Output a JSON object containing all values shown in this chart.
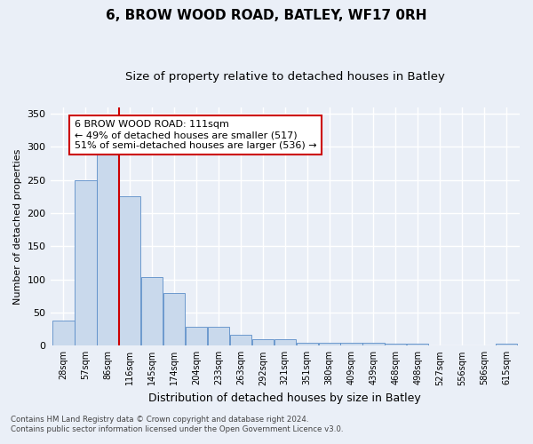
{
  "title": "6, BROW WOOD ROAD, BATLEY, WF17 0RH",
  "subtitle": "Size of property relative to detached houses in Batley",
  "xlabel": "Distribution of detached houses by size in Batley",
  "ylabel": "Number of detached properties",
  "footer_line1": "Contains HM Land Registry data © Crown copyright and database right 2024.",
  "footer_line2": "Contains public sector information licensed under the Open Government Licence v3.0.",
  "categories": [
    "28sqm",
    "57sqm",
    "86sqm",
    "116sqm",
    "145sqm",
    "174sqm",
    "204sqm",
    "233sqm",
    "263sqm",
    "292sqm",
    "321sqm",
    "351sqm",
    "380sqm",
    "409sqm",
    "439sqm",
    "468sqm",
    "498sqm",
    "527sqm",
    "556sqm",
    "586sqm",
    "615sqm"
  ],
  "values": [
    38,
    250,
    291,
    225,
    103,
    79,
    29,
    29,
    16,
    10,
    10,
    5,
    5,
    4,
    4,
    3,
    3,
    0,
    0,
    0,
    3
  ],
  "bar_color": "#c9d9ec",
  "bar_edge_color": "#5b8dc8",
  "vline_x": 2.5,
  "vline_color": "#cc0000",
  "annotation_line1": "6 BROW WOOD ROAD: 111sqm",
  "annotation_line2": "← 49% of detached houses are smaller (517)",
  "annotation_line3": "51% of semi-detached houses are larger (536) →",
  "annotation_box_color": "#ffffff",
  "annotation_box_edge_color": "#cc0000",
  "ylim": [
    0,
    360
  ],
  "yticks": [
    0,
    50,
    100,
    150,
    200,
    250,
    300,
    350
  ],
  "bg_color": "#eaeff7",
  "plot_bg_color": "#eaeff7",
  "grid_color": "#ffffff",
  "title_fontsize": 11,
  "subtitle_fontsize": 9.5,
  "xlabel_fontsize": 9,
  "ylabel_fontsize": 8
}
